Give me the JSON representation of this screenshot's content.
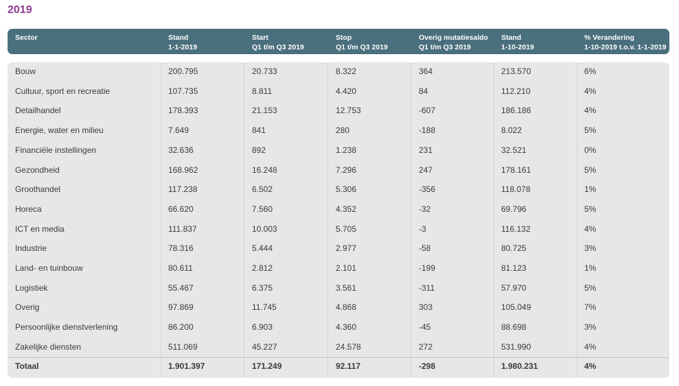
{
  "year": "2019",
  "headers": [
    "Sector",
    "Stand\n1-1-2019",
    "Start\nQ1 t/m Q3 2019",
    "Stop\nQ1 t/m Q3 2019",
    "Overig mutatiesaldo\nQ1 t/m Q3 2019",
    "Stand\n1-10-2019",
    "% Verandering\n1-10-2019 t.o.v. 1-1-2019"
  ],
  "rows": [
    [
      "Bouw",
      "200.795",
      "20.733",
      "8.322",
      "364",
      "213.570",
      "6%"
    ],
    [
      "Cultuur, sport en recreatie",
      "107.735",
      "8.811",
      "4.420",
      "84",
      "112.210",
      "4%"
    ],
    [
      "Detailhandel",
      "178.393",
      "21.153",
      "12.753",
      "-607",
      "186.186",
      "4%"
    ],
    [
      "Energie, water en milieu",
      "7.649",
      "841",
      "280",
      "-188",
      "8.022",
      "5%"
    ],
    [
      "Financiële instellingen",
      "32.636",
      "892",
      "1.238",
      "231",
      "32.521",
      "0%"
    ],
    [
      "Gezondheid",
      "168.962",
      "16.248",
      "7.296",
      "247",
      "178.161",
      "5%"
    ],
    [
      "Groothandel",
      "117.238",
      "6.502",
      "5.306",
      "-356",
      "118.078",
      "1%"
    ],
    [
      "Horeca",
      "66.620",
      "7.560",
      "4.352",
      "-32",
      "69.796",
      "5%"
    ],
    [
      "ICT en media",
      "111.837",
      "10.003",
      "5.705",
      "-3",
      "116.132",
      "4%"
    ],
    [
      "Industrie",
      "78.316",
      "5.444",
      "2.977",
      "-58",
      "80.725",
      "3%"
    ],
    [
      "Land- en tuinbouw",
      "80.611",
      "2.812",
      "2.101",
      "-199",
      "81.123",
      "1%"
    ],
    [
      "Logistiek",
      "55.467",
      "6.375",
      "3.561",
      "-311",
      "57.970",
      "5%"
    ],
    [
      "Overig",
      "97.869",
      "11.745",
      "4.868",
      "303",
      "105.049",
      "7%"
    ],
    [
      "Persoonlijke dienstverlening",
      "86.200",
      "6.903",
      "4.360",
      "-45",
      "88.698",
      "3%"
    ],
    [
      "Zakelijke diensten",
      "511.069",
      "45.227",
      "24.578",
      "272",
      "531.990",
      "4%"
    ]
  ],
  "total": [
    "Totaal",
    "1.901.397",
    "171.249",
    "92.117",
    "-298",
    "1.980.231",
    "4%"
  ],
  "colors": {
    "year": "#8b3b8f",
    "header_bg": "#4a6f7d",
    "body_bg": "#e7e7e7"
  }
}
